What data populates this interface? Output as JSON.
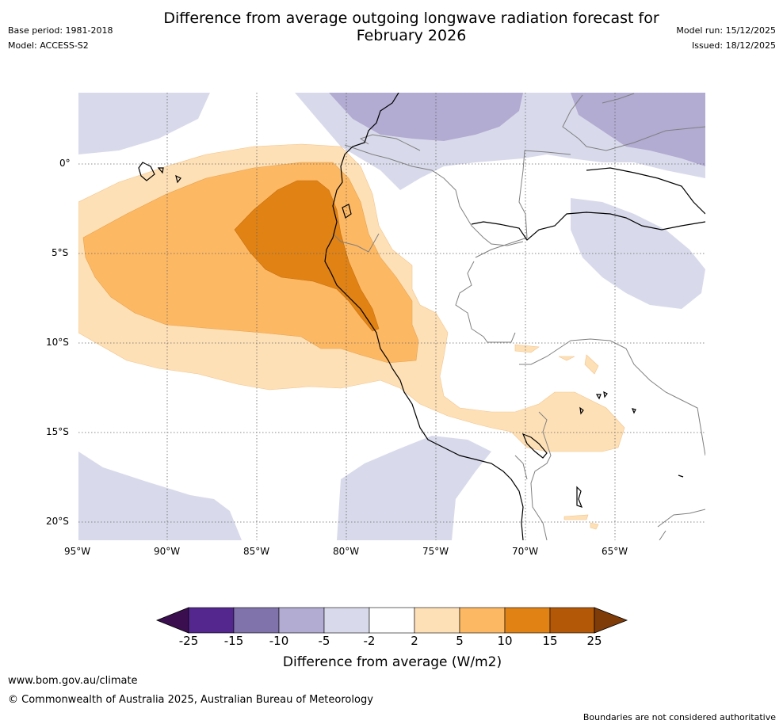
{
  "header": {
    "base_period": "Base period: 1981-2018",
    "model": "Model: ACCESS-S2",
    "title_line1": "Difference from average outgoing longwave radiation forecast for",
    "title_line2": "February 2026",
    "model_run": "Model run: 15/12/2025",
    "issued": "Issued: 18/12/2025"
  },
  "map": {
    "lat_labels": [
      "0°",
      "5°S",
      "10°S",
      "15°S",
      "20°S"
    ],
    "lon_labels": [
      "95°W",
      "90°W",
      "85°W",
      "80°W",
      "75°W",
      "70°W",
      "65°W"
    ]
  },
  "colorbar": {
    "ticks": [
      "-25",
      "-15",
      "-10",
      "-5",
      "-2",
      "2",
      "5",
      "10",
      "15",
      "25"
    ],
    "label": "Difference from average (W/m2)",
    "colors": [
      "#3b0f4f",
      "#54278f",
      "#8073ac",
      "#b2abd2",
      "#d8daeb",
      "#ffffff",
      "#fee0b6",
      "#fdb863",
      "#e08214",
      "#b35806",
      "#7f3b08"
    ]
  },
  "footer": {
    "url": "www.bom.gov.au/climate",
    "copyright": "© Commonwealth of Australia 2025, Australian Bureau of Meteorology",
    "disclaimer": "Boundaries are not considered authoritative"
  }
}
